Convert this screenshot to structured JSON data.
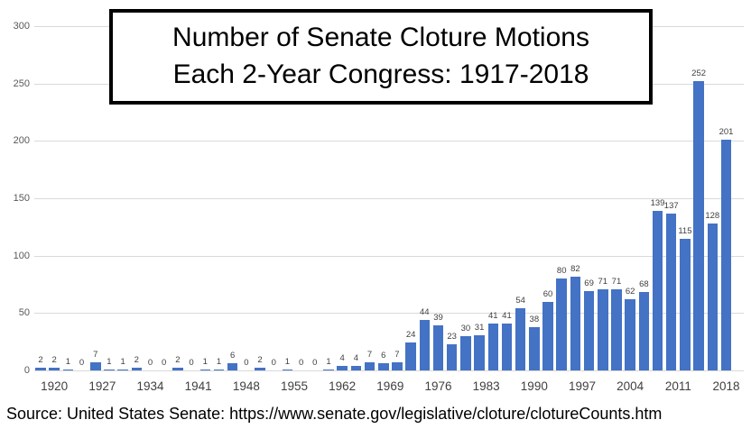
{
  "title": {
    "line1": "Number of Senate Cloture Motions",
    "line2": "Each 2-Year Congress: 1917-2018"
  },
  "source_text": "Source: United States Senate: https://www.senate.gov/legislative/cloture/clotureCounts.htm",
  "chart_data": {
    "type": "bar",
    "title": "Number of Senate Cloture Motions Each 2-Year Congress: 1917-2018",
    "congress_end_years": [
      1918,
      1920,
      1922,
      1924,
      1926,
      1928,
      1930,
      1932,
      1934,
      1936,
      1938,
      1940,
      1942,
      1944,
      1946,
      1948,
      1950,
      1952,
      1954,
      1956,
      1958,
      1960,
      1962,
      1964,
      1966,
      1968,
      1970,
      1972,
      1974,
      1976,
      1978,
      1980,
      1982,
      1984,
      1986,
      1988,
      1990,
      1992,
      1994,
      1996,
      1998,
      2000,
      2002,
      2004,
      2006,
      2008,
      2010,
      2012,
      2014,
      2016,
      2018
    ],
    "values": [
      2,
      2,
      1,
      0,
      7,
      1,
      1,
      2,
      0,
      0,
      2,
      0,
      1,
      1,
      6,
      0,
      2,
      0,
      1,
      0,
      0,
      1,
      4,
      4,
      7,
      6,
      7,
      24,
      44,
      39,
      23,
      30,
      31,
      41,
      41,
      54,
      38,
      60,
      80,
      82,
      69,
      71,
      71,
      62,
      68,
      139,
      137,
      115,
      252,
      128,
      201
    ],
    "data_labels_shown": true,
    "x_axis": {
      "tick_labels": [
        "1920",
        "1927",
        "1934",
        "1941",
        "1948",
        "1955",
        "1962",
        "1969",
        "1976",
        "1983",
        "1990",
        "1997",
        "2004",
        "2011",
        "2018"
      ]
    },
    "y_axis": {
      "ticks": [
        0,
        50,
        100,
        150,
        200,
        250,
        300
      ],
      "min": 0,
      "max": 300
    },
    "grid": true,
    "legend": "none",
    "colors": {
      "bar": "#4472c4",
      "gridline": "#d9d9d9",
      "value_label": "#404040",
      "x_tick_label": "#404040",
      "y_tick_label": "#595959",
      "title": "#000000",
      "source": "#000000"
    }
  }
}
